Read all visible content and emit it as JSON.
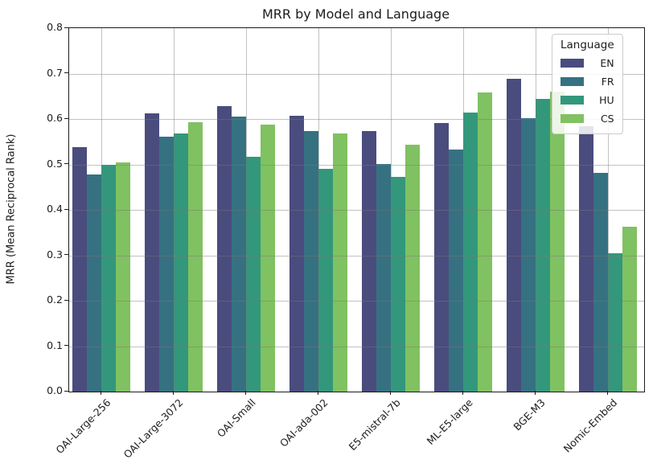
{
  "chart_data": {
    "type": "bar",
    "title": "MRR by Model and Language",
    "xlabel": "",
    "ylabel": "MRR  (Mean Reciprocal Rank)",
    "ylim": [
      0.0,
      0.8
    ],
    "yticks": [
      "0.0",
      "0.1",
      "0.2",
      "0.3",
      "0.4",
      "0.5",
      "0.6",
      "0.7",
      "0.8"
    ],
    "grid": true,
    "legend": {
      "title": "Language",
      "position": "upper right"
    },
    "categories": [
      "OAI-Large-256",
      "OAI-Large-3072",
      "OAI-Small",
      "OAI-ada-002",
      "E5-mistral-7b",
      "ML-E5-large",
      "BGE-M3",
      "Nomic-Embed"
    ],
    "series": [
      {
        "name": "EN",
        "color": "#4a4c7e",
        "values": [
          0.538,
          0.612,
          0.628,
          0.607,
          0.573,
          0.591,
          0.688,
          0.584
        ]
      },
      {
        "name": "FR",
        "color": "#367181",
        "values": [
          0.478,
          0.561,
          0.605,
          0.573,
          0.501,
          0.532,
          0.601,
          0.482
        ]
      },
      {
        "name": "HU",
        "color": "#33977c",
        "values": [
          0.5,
          0.568,
          0.517,
          0.49,
          0.472,
          0.615,
          0.644,
          0.305
        ]
      },
      {
        "name": "CS",
        "color": "#80c161",
        "values": [
          0.505,
          0.593,
          0.588,
          0.568,
          0.543,
          0.659,
          0.66,
          0.362
        ]
      }
    ]
  }
}
